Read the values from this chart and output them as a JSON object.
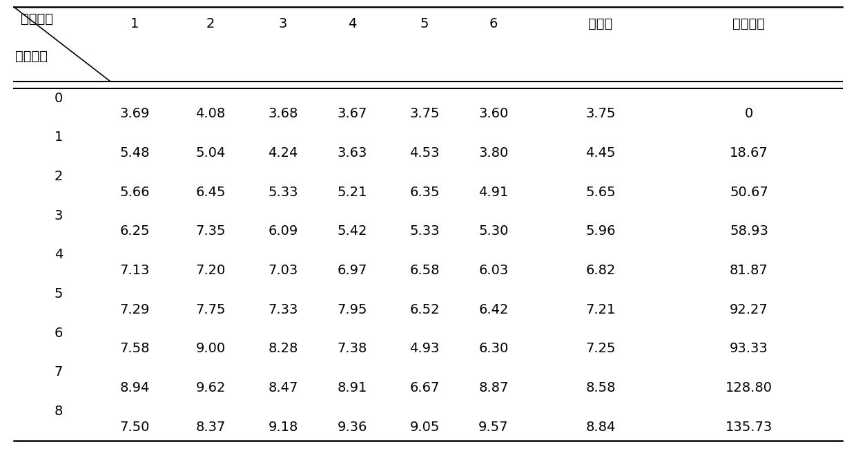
{
  "col_header_top": [
    "1",
    "2",
    "3",
    "4",
    "5",
    "6",
    "平均値",
    "增加比率"
  ],
  "label_mouse": "小鼠编号",
  "label_week": "给鐵周数",
  "rows": [
    {
      "week": "0",
      "vals": [
        "3.69",
        "4.08",
        "3.68",
        "3.67",
        "3.75",
        "3.60",
        "3.75",
        "0"
      ]
    },
    {
      "week": "1",
      "vals": [
        "5.48",
        "5.04",
        "4.24",
        "3.63",
        "4.53",
        "3.80",
        "4.45",
        "18.67"
      ]
    },
    {
      "week": "2",
      "vals": [
        "5.66",
        "6.45",
        "5.33",
        "5.21",
        "6.35",
        "4.91",
        "5.65",
        "50.67"
      ]
    },
    {
      "week": "3",
      "vals": [
        "6.25",
        "7.35",
        "6.09",
        "5.42",
        "5.33",
        "5.30",
        "5.96",
        "58.93"
      ]
    },
    {
      "week": "4",
      "vals": [
        "7.13",
        "7.20",
        "7.03",
        "6.97",
        "6.58",
        "6.03",
        "6.82",
        "81.87"
      ]
    },
    {
      "week": "5",
      "vals": [
        "7.29",
        "7.75",
        "7.33",
        "7.95",
        "6.52",
        "6.42",
        "7.21",
        "92.27"
      ]
    },
    {
      "week": "6",
      "vals": [
        "7.58",
        "9.00",
        "8.28",
        "7.38",
        "4.93",
        "6.30",
        "7.25",
        "93.33"
      ]
    },
    {
      "week": "7",
      "vals": [
        "8.94",
        "9.62",
        "8.47",
        "8.91",
        "6.67",
        "8.87",
        "8.58",
        "128.80"
      ]
    },
    {
      "week": "8",
      "vals": [
        "7.50",
        "8.37",
        "9.18",
        "9.36",
        "9.05",
        "9.57",
        "8.84",
        "135.73"
      ]
    }
  ],
  "background_color": "#ffffff",
  "text_color": "#000000",
  "font_size": 14,
  "figsize": [
    12.4,
    6.5
  ],
  "dpi": 100
}
